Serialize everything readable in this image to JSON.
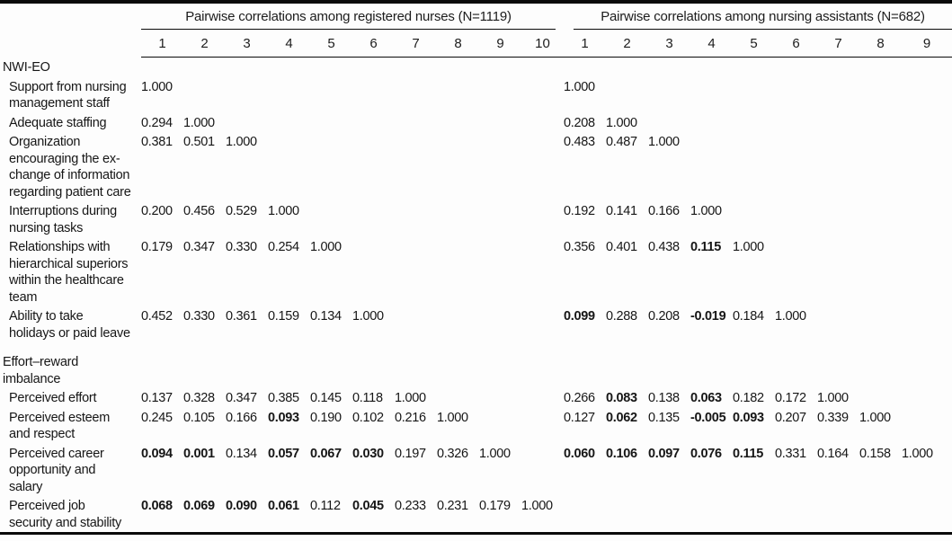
{
  "table": {
    "header": {
      "groups": [
        {
          "title": "Pairwise correlations among registered nurses (N=1119)",
          "columns": [
            "1",
            "2",
            "3",
            "4",
            "5",
            "6",
            "7",
            "8",
            "9",
            "10"
          ]
        },
        {
          "title": "Pairwise correlations among nursing assistants (N=682)",
          "columns": [
            "1",
            "2",
            "3",
            "4",
            "5",
            "6",
            "7",
            "8",
            "9"
          ]
        }
      ]
    },
    "rows": [
      {
        "type": "section",
        "label": "NWI-EO"
      },
      {
        "type": "data",
        "label": "Support from nursing\nmanagement staff",
        "rn": [
          "1.000"
        ],
        "rn_bold": [],
        "na": [
          "1.000"
        ],
        "na_bold": []
      },
      {
        "type": "data",
        "label": "Adequate staffing",
        "rn": [
          "0.294",
          "1.000"
        ],
        "rn_bold": [],
        "na": [
          "0.208",
          "1.000"
        ],
        "na_bold": []
      },
      {
        "type": "data",
        "label": "Organization\nencouraging the ex-\nchange of information\nregarding patient care",
        "rn": [
          "0.381",
          "0.501",
          "1.000"
        ],
        "rn_bold": [],
        "na": [
          "0.483",
          "0.487",
          "1.000"
        ],
        "na_bold": []
      },
      {
        "type": "data",
        "label": "Interruptions during\nnursing tasks",
        "rn": [
          "0.200",
          "0.456",
          "0.529",
          "1.000"
        ],
        "rn_bold": [],
        "na": [
          "0.192",
          "0.141",
          "0.166",
          "1.000"
        ],
        "na_bold": []
      },
      {
        "type": "data",
        "label": "Relationships with\nhierarchical superiors\nwithin the healthcare\nteam",
        "rn": [
          "0.179",
          "0.347",
          "0.330",
          "0.254",
          "1.000"
        ],
        "rn_bold": [],
        "na": [
          "0.356",
          "0.401",
          "0.438",
          "0.115",
          "1.000"
        ],
        "na_bold": [
          3
        ]
      },
      {
        "type": "data",
        "label": "Ability to take\nholidays or paid leave",
        "rn": [
          "0.452",
          "0.330",
          "0.361",
          "0.159",
          "0.134",
          "1.000"
        ],
        "rn_bold": [],
        "na": [
          "0.099",
          "0.288",
          "0.208",
          "-0.019",
          "0.184",
          "1.000"
        ],
        "na_bold": [
          0,
          3
        ]
      },
      {
        "type": "section",
        "label": "Effort–reward\nimbalance"
      },
      {
        "type": "data",
        "label": "Perceived effort",
        "rn": [
          "0.137",
          "0.328",
          "0.347",
          "0.385",
          "0.145",
          "0.118",
          "1.000"
        ],
        "rn_bold": [],
        "na": [
          "0.266",
          "0.083",
          "0.138",
          "0.063",
          "0.182",
          "0.172",
          "1.000"
        ],
        "na_bold": [
          1,
          3
        ]
      },
      {
        "type": "data",
        "label": "Perceived esteem\nand respect",
        "rn": [
          "0.245",
          "0.105",
          "0.166",
          "0.093",
          "0.190",
          "0.102",
          "0.216",
          "1.000"
        ],
        "rn_bold": [
          3
        ],
        "na": [
          "0.127",
          "0.062",
          "0.135",
          "-0.005",
          "0.093",
          "0.207",
          "0.339",
          "1.000"
        ],
        "na_bold": [
          1,
          3,
          4
        ]
      },
      {
        "type": "data",
        "label": "Perceived career\nopportunity and\nsalary",
        "rn": [
          "0.094",
          "0.001",
          "0.134",
          "0.057",
          "0.067",
          "0.030",
          "0.197",
          "0.326",
          "1.000"
        ],
        "rn_bold": [
          0,
          1,
          3,
          4,
          5
        ],
        "na": [
          "0.060",
          "0.106",
          "0.097",
          "0.076",
          "0.115",
          "0.331",
          "0.164",
          "0.158",
          "1.000"
        ],
        "na_bold": [
          0,
          1,
          2,
          3,
          4
        ]
      },
      {
        "type": "data",
        "label": "Perceived job\nsecurity and stability",
        "rn": [
          "0.068",
          "0.069",
          "0.090",
          "0.061",
          "0.112",
          "0.045",
          "0.233",
          "0.231",
          "0.179",
          "1.000"
        ],
        "rn_bold": [
          0,
          1,
          2,
          3,
          5
        ],
        "na": [],
        "na_bold": []
      }
    ]
  },
  "colors": {
    "text": "#161616",
    "rule": "#0a0a0a",
    "background": "#fdfdfd"
  }
}
